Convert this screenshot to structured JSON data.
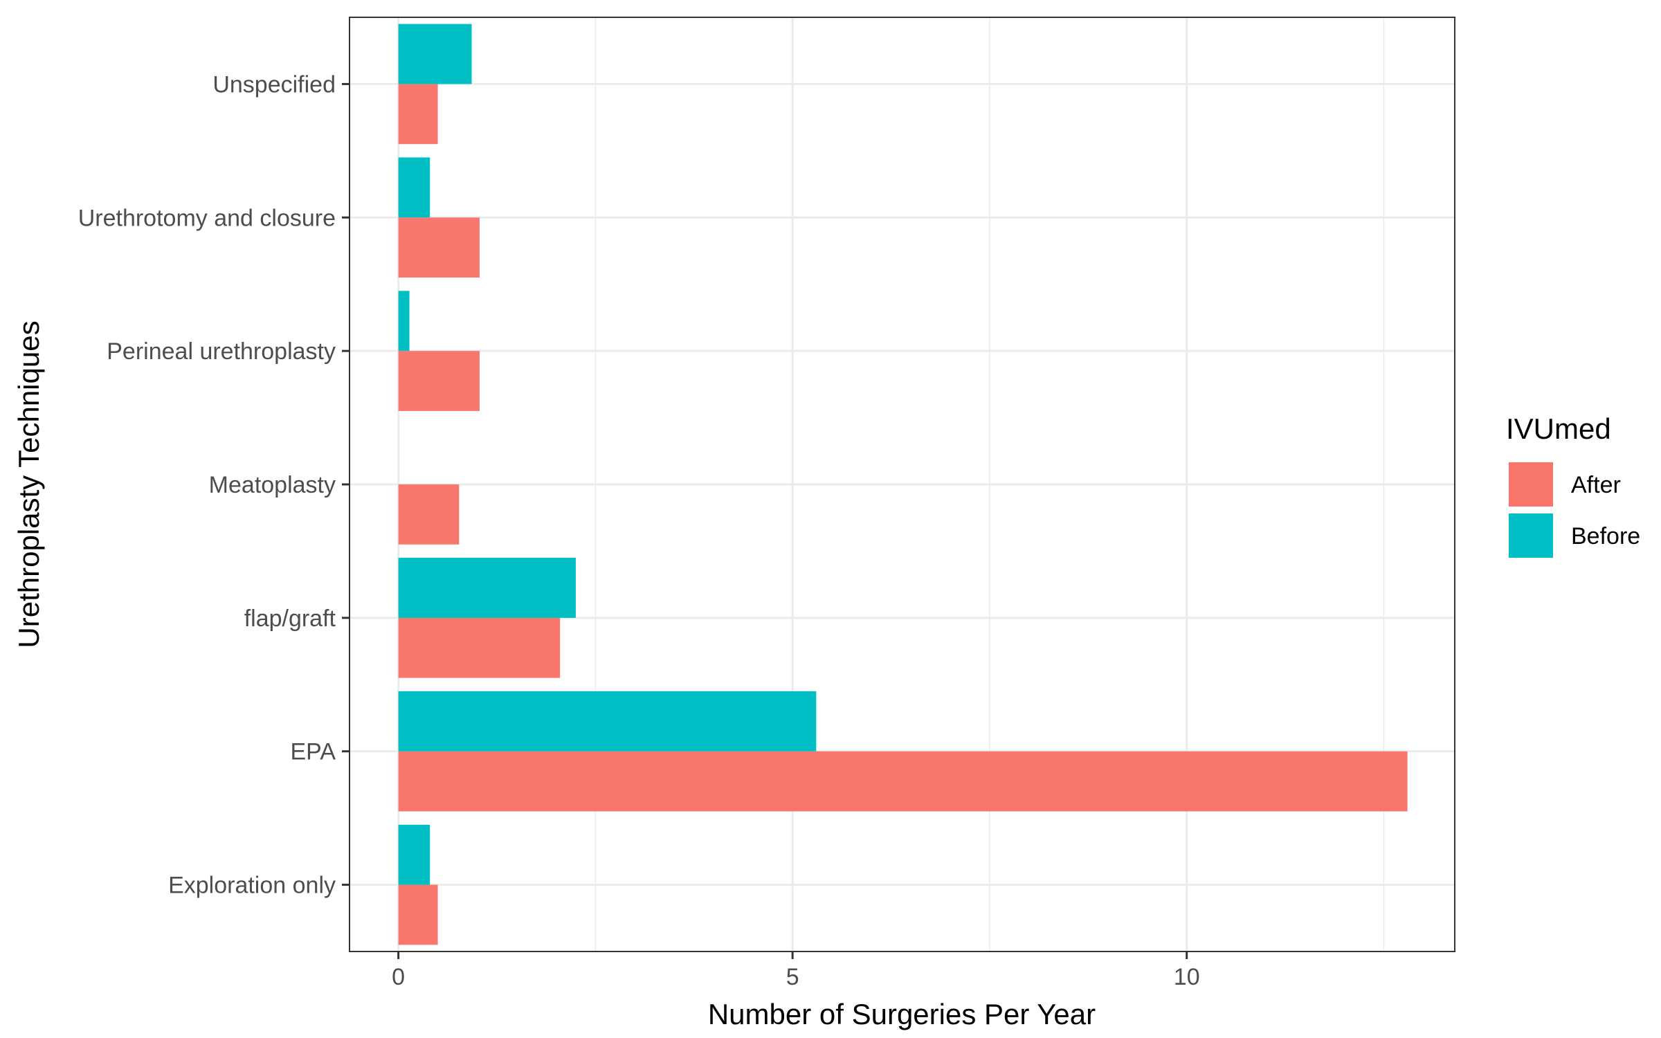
{
  "chart_data": {
    "type": "bar",
    "orientation": "horizontal",
    "xlabel": "Number of Surgeries Per Year",
    "ylabel": "Urethroplasty Techniques",
    "categories": [
      "Exploration only",
      "EPA",
      "flap/graft",
      "Meatoplasty",
      "Perineal urethroplasty",
      "Urethrotomy and closure",
      "Unspecified"
    ],
    "series": [
      {
        "name": "After",
        "color": "#F8766D",
        "values": [
          0.5,
          12.8,
          2.05,
          0.77,
          1.03,
          1.03,
          0.5
        ]
      },
      {
        "name": "Before",
        "color": "#00BFC4",
        "values": [
          0.4,
          5.3,
          2.25,
          0,
          0.14,
          0.4,
          0.93
        ]
      }
    ],
    "xlim": [
      -0.62,
      13.4
    ],
    "xticks": [
      0,
      5,
      10
    ],
    "xtick_labels": [
      "0",
      "5",
      "10"
    ],
    "grid": true,
    "legend": {
      "title": "IVUmed",
      "position": "right",
      "entries": [
        "After",
        "Before"
      ]
    }
  }
}
